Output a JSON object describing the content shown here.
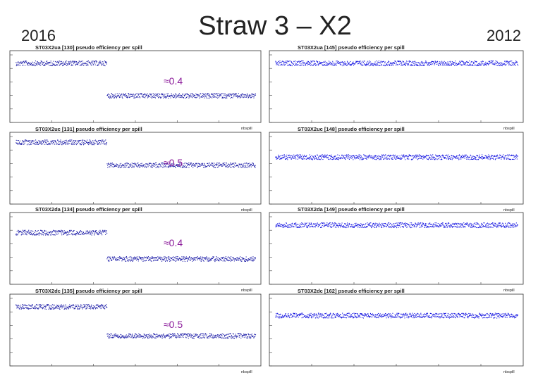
{
  "slide": {
    "title": "Straw 3 – X2",
    "year_left": "2016",
    "year_right": "2012"
  },
  "chart_data": [
    {
      "type": "scatter",
      "column": "2016",
      "title": "ST03X2ua [130] pseudo efficiency per spill",
      "xlabel": "nbspill",
      "ylim": [
        0,
        1
      ],
      "annotation": "≈0.4",
      "segments": [
        {
          "from": 0,
          "to": 0.38,
          "level": 0.88
        },
        {
          "from": 0.38,
          "to": 1.0,
          "level": 0.4
        }
      ],
      "color": "#1a1aa6"
    },
    {
      "type": "scatter",
      "column": "2012",
      "title": "ST03X2ua [145] pseudo efficiency per spill",
      "xlabel": "nbspill",
      "ylim": [
        0,
        1
      ],
      "segments": [
        {
          "from": 0,
          "to": 1.0,
          "level": 0.88
        }
      ],
      "color": "#1010e0"
    },
    {
      "type": "scatter",
      "column": "2016",
      "title": "ST03X2uc [131] pseudo efficiency per spill",
      "xlabel": "nbspill",
      "ylim": [
        0,
        1
      ],
      "annotation": "≈0.5",
      "segments": [
        {
          "from": 0,
          "to": 0.38,
          "level": 0.92
        },
        {
          "from": 0.38,
          "to": 1.0,
          "level": 0.58
        }
      ],
      "color": "#1a1aa6"
    },
    {
      "type": "scatter",
      "column": "2012",
      "title": "ST03X2uc [148] pseudo efficiency per spill",
      "xlabel": "nbspill",
      "ylim": [
        0,
        1
      ],
      "segments": [
        {
          "from": 0,
          "to": 1.0,
          "level": 0.7
        }
      ],
      "color": "#1010e0"
    },
    {
      "type": "scatter",
      "column": "2016",
      "title": "ST03X2da [134] pseudo efficiency per spill",
      "xlabel": "nbspill",
      "ylim": [
        0,
        1
      ],
      "annotation": "≈0.4",
      "segments": [
        {
          "from": 0,
          "to": 0.38,
          "level": 0.77
        },
        {
          "from": 0.38,
          "to": 1.0,
          "level": 0.38
        }
      ],
      "color": "#1a1aa6"
    },
    {
      "type": "scatter",
      "column": "2012",
      "title": "ST03X2da [149] pseudo efficiency per spill",
      "xlabel": "nbspill",
      "ylim": [
        0,
        1
      ],
      "segments": [
        {
          "from": 0,
          "to": 1.0,
          "level": 0.88
        }
      ],
      "color": "#1010e0"
    },
    {
      "type": "scatter",
      "column": "2016",
      "title": "ST03X2dc [135] pseudo efficiency per spill",
      "xlabel": "nbspill",
      "ylim": [
        0,
        1
      ],
      "annotation": "≈0.5",
      "segments": [
        {
          "from": 0,
          "to": 0.38,
          "level": 0.88
        },
        {
          "from": 0.38,
          "to": 1.0,
          "level": 0.45
        }
      ],
      "color": "#1a1aa6"
    },
    {
      "type": "scatter",
      "column": "2012",
      "title": "ST03X2dc [162] pseudo efficiency per spill",
      "xlabel": "nbspill",
      "ylim": [
        0,
        1
      ],
      "segments": [
        {
          "from": 0,
          "to": 1.0,
          "level": 0.75
        }
      ],
      "color": "#1010e0"
    }
  ],
  "colors": {
    "annotation": "#8b1a9a",
    "frame": "#333333"
  }
}
